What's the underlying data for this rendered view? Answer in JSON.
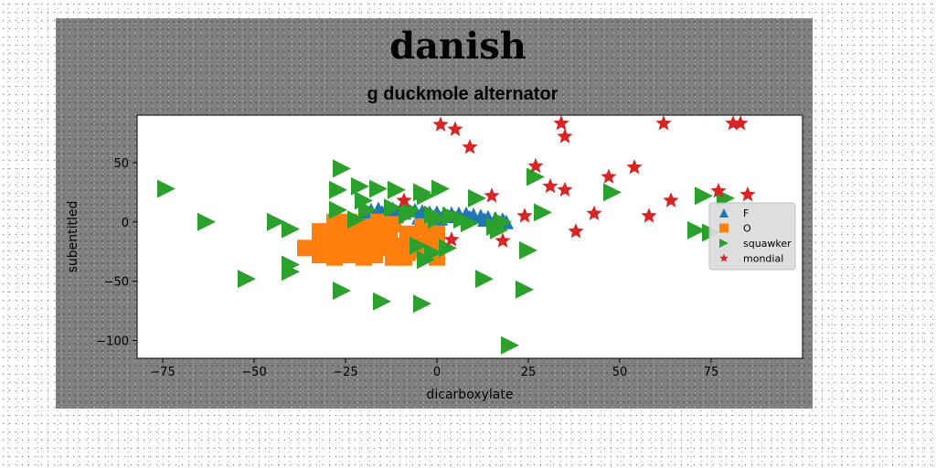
{
  "chart_data": {
    "type": "scatter",
    "title": "danish",
    "subtitle": "g duckmole alternator",
    "xlabel": "dicarboxylate",
    "ylabel": "subentitled",
    "xlim": [
      -82,
      100
    ],
    "ylim": [
      -115,
      90
    ],
    "xticks": [
      -75,
      -50,
      -25,
      0,
      25,
      50,
      75
    ],
    "xtick_labels": [
      "−75",
      "−50",
      "−25",
      "0",
      "25",
      "50",
      "75"
    ],
    "yticks": [
      -100,
      -50,
      0,
      50
    ],
    "ytick_labels": [
      "−100",
      "−50",
      "0",
      "50"
    ],
    "grid": false,
    "legend_position": "center-right",
    "series": [
      {
        "name": "F",
        "marker": "triangle-up",
        "color": "#1f77b4",
        "points": [
          [
            -20,
            9
          ],
          [
            -18,
            10
          ],
          [
            -16,
            11
          ],
          [
            -14,
            10
          ],
          [
            -12,
            11
          ],
          [
            -10,
            10
          ],
          [
            -8,
            11
          ],
          [
            -6,
            10
          ],
          [
            -4,
            9
          ],
          [
            -2,
            8
          ],
          [
            0,
            8
          ],
          [
            2,
            7
          ],
          [
            4,
            7
          ],
          [
            6,
            7
          ],
          [
            8,
            7
          ],
          [
            10,
            6
          ],
          [
            12,
            5
          ],
          [
            14,
            4
          ],
          [
            16,
            3
          ],
          [
            18,
            2
          ],
          [
            19,
            0
          ],
          [
            -19,
            7
          ],
          [
            -15,
            8
          ],
          [
            -9,
            8
          ],
          [
            -3,
            6
          ],
          [
            3,
            5
          ],
          [
            9,
            4
          ],
          [
            13,
            2
          ],
          [
            -17,
            4
          ],
          [
            -11,
            5
          ],
          [
            -5,
            4
          ],
          [
            1,
            3
          ]
        ]
      },
      {
        "name": "O",
        "marker": "square",
        "color": "#ff7f0e",
        "points": [
          [
            -32,
            -28
          ],
          [
            -32,
            -18
          ],
          [
            -32,
            -8
          ],
          [
            -28,
            -30
          ],
          [
            -28,
            -20
          ],
          [
            -28,
            -10
          ],
          [
            -28,
            0
          ],
          [
            -24,
            -28
          ],
          [
            -24,
            -18
          ],
          [
            -24,
            -8
          ],
          [
            -24,
            0
          ],
          [
            -21,
            -24
          ],
          [
            -21,
            -14
          ],
          [
            -20,
            -4
          ],
          [
            -17,
            -28
          ],
          [
            -17,
            -18
          ],
          [
            -16,
            -8
          ],
          [
            -16,
            0
          ],
          [
            -13,
            -22
          ],
          [
            -13,
            -12
          ],
          [
            -12,
            -2
          ],
          [
            -9,
            -30
          ],
          [
            -9,
            -20
          ],
          [
            -8,
            -10
          ],
          [
            -4,
            -24
          ],
          [
            -4,
            -14
          ],
          [
            -4,
            -4
          ],
          [
            0,
            -30
          ],
          [
            0,
            -20
          ],
          [
            0,
            -10
          ],
          [
            -20,
            -30
          ],
          [
            -12,
            -30
          ],
          [
            -8,
            -26
          ],
          [
            -36,
            -22
          ]
        ]
      },
      {
        "name": "squawker",
        "marker": "triangle-right",
        "color": "#2ca02c",
        "points": [
          [
            -74,
            28
          ],
          [
            -63,
            0
          ],
          [
            -44,
            0
          ],
          [
            -40,
            -6
          ],
          [
            -40,
            -36
          ],
          [
            -40,
            -42
          ],
          [
            -52,
            -48
          ],
          [
            -26,
            -58
          ],
          [
            -15,
            -67
          ],
          [
            -4,
            -69
          ],
          [
            -26,
            45
          ],
          [
            -27,
            27
          ],
          [
            -27,
            10
          ],
          [
            -21,
            30
          ],
          [
            -20,
            18
          ],
          [
            -22,
            2
          ],
          [
            -16,
            28
          ],
          [
            -11,
            27
          ],
          [
            -8,
            6
          ],
          [
            -4,
            25
          ],
          [
            -3,
            22
          ],
          [
            -5,
            -20
          ],
          [
            -3,
            -32
          ],
          [
            -1,
            -26
          ],
          [
            1,
            28
          ],
          [
            0,
            2
          ],
          [
            3,
            -22
          ],
          [
            -1,
            6
          ],
          [
            4,
            5
          ],
          [
            7,
            2
          ],
          [
            9,
            -1
          ],
          [
            11,
            20
          ],
          [
            13,
            -48
          ],
          [
            16,
            -4
          ],
          [
            18,
            0
          ],
          [
            17,
            -7
          ],
          [
            25,
            -24
          ],
          [
            24,
            -57
          ],
          [
            20,
            -104
          ],
          [
            27,
            38
          ],
          [
            29,
            8
          ],
          [
            48,
            25
          ],
          [
            73,
            22
          ],
          [
            71,
            -7
          ],
          [
            75,
            -9
          ],
          [
            79,
            20
          ],
          [
            -19,
            10
          ],
          [
            -12,
            12
          ],
          [
            -7,
            10
          ]
        ]
      },
      {
        "name": "mondial",
        "marker": "star",
        "color": "#d62728",
        "points": [
          [
            1,
            82
          ],
          [
            5,
            78
          ],
          [
            9,
            63
          ],
          [
            15,
            22
          ],
          [
            18,
            -16
          ],
          [
            24,
            5
          ],
          [
            27,
            47
          ],
          [
            31,
            30
          ],
          [
            35,
            27
          ],
          [
            34,
            83
          ],
          [
            35,
            72
          ],
          [
            38,
            -8
          ],
          [
            43,
            7
          ],
          [
            47,
            38
          ],
          [
            54,
            46
          ],
          [
            58,
            5
          ],
          [
            62,
            83
          ],
          [
            64,
            18
          ],
          [
            77,
            26
          ],
          [
            81,
            83
          ],
          [
            83,
            83
          ],
          [
            85,
            23
          ],
          [
            -9,
            18
          ],
          [
            4,
            -15
          ]
        ]
      }
    ]
  }
}
